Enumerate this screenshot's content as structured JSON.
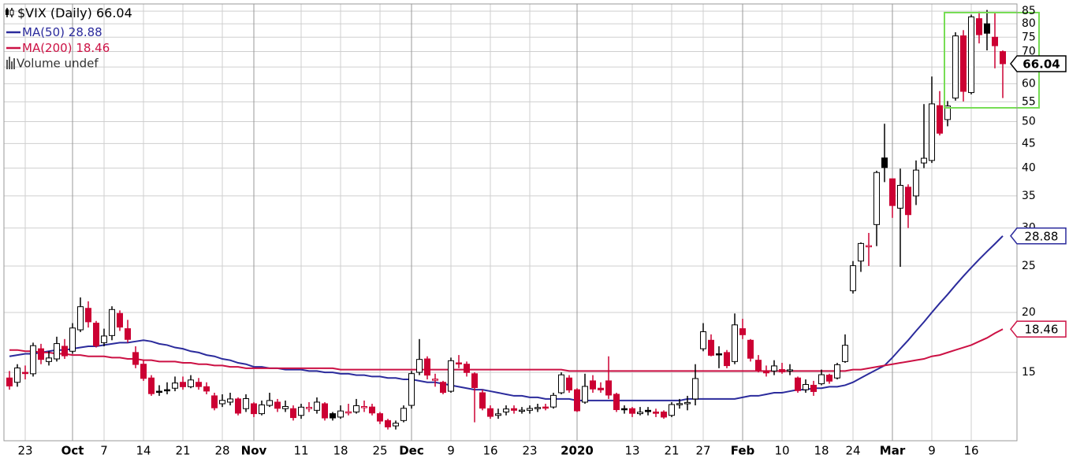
{
  "chart_data": {
    "type": "candlestick",
    "title": "$VIX (Daily)",
    "volume_label": "Volume undef",
    "log": true,
    "grid": true,
    "up_color": "#000000",
    "down_color": "#cc0033",
    "ylim": [
      10.8,
      88
    ],
    "yticks": [
      15,
      20,
      25,
      30,
      35,
      40,
      45,
      50,
      55,
      60,
      65,
      70,
      75,
      80,
      85
    ],
    "categories": [
      null,
      null,
      "23",
      null,
      null,
      null,
      null,
      null,
      "Oct",
      null,
      null,
      null,
      "7",
      null,
      null,
      null,
      null,
      "14",
      null,
      null,
      null,
      null,
      "21",
      null,
      null,
      null,
      null,
      "28",
      null,
      null,
      null,
      "Nov",
      null,
      null,
      null,
      null,
      null,
      "11",
      null,
      null,
      null,
      null,
      "18",
      null,
      null,
      null,
      null,
      "25",
      null,
      null,
      null,
      "Dec",
      null,
      null,
      null,
      null,
      "9",
      null,
      null,
      null,
      null,
      "16",
      null,
      null,
      null,
      null,
      "23",
      null,
      null,
      null,
      null,
      null,
      "2020",
      null,
      null,
      null,
      null,
      null,
      null,
      "13",
      null,
      null,
      null,
      null,
      "21",
      null,
      null,
      null,
      "27",
      null,
      null,
      null,
      null,
      "Feb",
      null,
      null,
      null,
      null,
      "10",
      null,
      null,
      null,
      null,
      "18",
      null,
      null,
      null,
      "24",
      null,
      null,
      null,
      null,
      "Mar",
      null,
      null,
      null,
      null,
      "9",
      null,
      null,
      null,
      null,
      "16",
      null,
      null,
      null,
      null
    ],
    "open": [
      14.6,
      14.3,
      15.0,
      14.9,
      16.8,
      15.8,
      16.0,
      17.0,
      16.6,
      18.4,
      20.4,
      19.0,
      17.3,
      17.9,
      19.9,
      18.5,
      16.5,
      15.6,
      14.6,
      13.7,
      13.8,
      13.9,
      14.3,
      14.0,
      14.3,
      14.0,
      13.4,
      12.9,
      13.0,
      13.2,
      12.6,
      12.9,
      12.3,
      12.8,
      13.0,
      12.6,
      12.6,
      12.2,
      12.6,
      12.5,
      12.9,
      12.3,
      12.1,
      12.4,
      12.4,
      12.7,
      12.7,
      12.3,
      11.9,
      11.6,
      11.9,
      12.8,
      15.0,
      16.0,
      14.5,
      14.3,
      13.7,
      15.7,
      15.6,
      14.9,
      13.6,
      12.6,
      12.2,
      12.4,
      12.6,
      12.5,
      12.5,
      12.6,
      12.7,
      12.7,
      13.6,
      14.6,
      13.8,
      13.0,
      14.4,
      13.9,
      14.4,
      13.5,
      12.6,
      12.6,
      12.3,
      12.5,
      12.4,
      12.4,
      12.2,
      12.9,
      12.9,
      13.2,
      16.8,
      17.5,
      16.4,
      16.5,
      15.8,
      18.5,
      17.5,
      15.9,
      15.1,
      15.1,
      15.2,
      15.1,
      14.6,
      13.8,
      14.1,
      14.2,
      14.8,
      14.6,
      15.8,
      22.2,
      25.6,
      27.5,
      30.5,
      42.0,
      38.0,
      33.0,
      36.5,
      35.0,
      41.0,
      41.5,
      54.0,
      50.5,
      56.0,
      75.5,
      57.5,
      82.0,
      80.0,
      75.0,
      70.0
    ],
    "high": [
      15.1,
      15.6,
      15.5,
      17.3,
      17.2,
      16.6,
      17.8,
      17.6,
      19.0,
      21.5,
      21.1,
      19.2,
      18.5,
      20.6,
      20.2,
      19.3,
      17.0,
      15.9,
      14.8,
      14.1,
      14.3,
      14.7,
      14.7,
      14.8,
      14.6,
      14.3,
      13.6,
      13.5,
      13.6,
      13.3,
      13.5,
      13.0,
      13.1,
      13.6,
      13.2,
      13.1,
      12.8,
      12.9,
      13.0,
      13.3,
      13.0,
      12.4,
      12.8,
      12.9,
      13.2,
      13.1,
      12.9,
      12.4,
      12.0,
      11.9,
      12.8,
      15.1,
      17.6,
      16.2,
      14.9,
      14.4,
      16.1,
      16.3,
      15.8,
      15.0,
      13.8,
      12.8,
      12.6,
      12.8,
      12.8,
      12.7,
      12.8,
      12.9,
      12.9,
      13.6,
      15.0,
      14.8,
      13.9,
      14.9,
      14.8,
      14.3,
      16.2,
      13.6,
      12.8,
      12.7,
      12.7,
      12.7,
      12.6,
      12.5,
      13.0,
      13.2,
      13.4,
      15.6,
      19.0,
      18.0,
      17.0,
      16.7,
      19.9,
      19.4,
      17.6,
      16.3,
      15.5,
      15.9,
      15.7,
      15.6,
      14.7,
      14.5,
      14.4,
      15.2,
      14.9,
      15.7,
      18.0,
      25.6,
      28.0,
      29.3,
      39.5,
      49.5,
      38.0,
      39.9,
      37.0,
      41.5,
      54.4,
      62.1,
      57.9,
      55.2,
      76.8,
      77.6,
      83.6,
      84.8,
      85.5,
      84.3,
      70.4
    ],
    "low": [
      13.8,
      14.0,
      14.5,
      14.7,
      15.6,
      15.5,
      15.8,
      16.0,
      16.4,
      18.2,
      18.6,
      16.9,
      17.0,
      17.5,
      18.3,
      17.3,
      15.3,
      14.4,
      13.4,
      13.4,
      13.5,
      13.7,
      13.8,
      13.9,
      13.8,
      13.5,
      12.5,
      12.7,
      12.8,
      12.2,
      12.4,
      12.1,
      12.2,
      12.7,
      12.4,
      12.4,
      11.9,
      12.0,
      12.4,
      12.3,
      11.9,
      11.9,
      12.0,
      12.2,
      12.3,
      12.4,
      12.2,
      11.7,
      11.4,
      11.4,
      11.8,
      12.6,
      14.8,
      14.5,
      14.0,
      13.5,
      13.6,
      15.3,
      14.7,
      11.8,
      12.5,
      12.0,
      12.0,
      12.2,
      12.3,
      12.3,
      12.3,
      12.4,
      12.5,
      12.6,
      13.5,
      13.6,
      12.4,
      12.9,
      13.6,
      13.6,
      13.2,
      12.4,
      12.3,
      12.1,
      12.2,
      12.2,
      12.1,
      12.0,
      12.1,
      12.6,
      12.5,
      12.8,
      16.6,
      16.2,
      15.3,
      15.3,
      15.6,
      17.6,
      15.8,
      15.0,
      14.7,
      14.8,
      14.9,
      14.8,
      13.6,
      13.6,
      13.4,
      14.1,
      14.2,
      14.5,
      15.7,
      21.9,
      24.3,
      25.0,
      27.5,
      37.4,
      31.5,
      24.9,
      30.0,
      33.5,
      40.0,
      41.0,
      46.8,
      48.9,
      55.3,
      55.1,
      57.0,
      72.8,
      70.4,
      64.6,
      56.0
    ],
    "close": [
      14.05,
      15.32,
      14.91,
      17.05,
      15.96,
      16.07,
      17.22,
      16.24,
      18.56,
      20.56,
      19.12,
      17.04,
      17.86,
      20.28,
      18.64,
      17.57,
      15.58,
      14.57,
      13.54,
      13.68,
      13.79,
      14.25,
      14.0,
      14.46,
      14.01,
      13.71,
      12.65,
      13.11,
      13.2,
      12.33,
      13.22,
      12.3,
      12.83,
      13.1,
      12.62,
      12.73,
      12.07,
      12.69,
      12.68,
      13.0,
      12.05,
      12.05,
      12.46,
      12.41,
      12.78,
      12.73,
      12.34,
      11.87,
      11.54,
      11.75,
      12.62,
      14.91,
      15.96,
      14.8,
      14.52,
      13.62,
      15.86,
      15.68,
      14.99,
      13.94,
      12.63,
      12.14,
      12.29,
      12.58,
      12.5,
      12.51,
      12.61,
      12.67,
      12.65,
      13.43,
      14.82,
      13.78,
      12.47,
      14.02,
      13.85,
      13.79,
      13.45,
      12.54,
      12.56,
      12.32,
      12.39,
      12.42,
      12.32,
      12.1,
      12.85,
      12.91,
      12.98,
      14.56,
      18.23,
      16.28,
      16.39,
      15.49,
      18.84,
      17.97,
      16.05,
      15.15,
      14.96,
      15.47,
      15.04,
      15.18,
      13.74,
      14.15,
      13.68,
      14.83,
      14.38,
      15.56,
      17.08,
      25.03,
      27.85,
      27.56,
      39.16,
      40.11,
      33.42,
      36.82,
      31.99,
      39.62,
      41.94,
      54.46,
      47.3,
      53.9,
      75.47,
      57.83,
      82.69,
      75.91,
      76.45,
      72.0,
      66.04
    ],
    "series": [
      {
        "name": "MA(50)",
        "color": "#2b2b9c",
        "values": [
          16.2,
          16.3,
          16.4,
          16.4,
          16.5,
          16.6,
          16.7,
          16.7,
          16.8,
          16.9,
          17.0,
          17.0,
          17.1,
          17.2,
          17.3,
          17.3,
          17.4,
          17.5,
          17.4,
          17.2,
          17.1,
          16.9,
          16.8,
          16.6,
          16.5,
          16.3,
          16.2,
          16.0,
          15.9,
          15.7,
          15.6,
          15.4,
          15.4,
          15.3,
          15.3,
          15.2,
          15.2,
          15.2,
          15.1,
          15.1,
          15.0,
          15.0,
          14.9,
          14.9,
          14.8,
          14.8,
          14.7,
          14.7,
          14.6,
          14.6,
          14.5,
          14.5,
          14.4,
          14.3,
          14.3,
          14.2,
          14.1,
          14.0,
          13.9,
          13.8,
          13.8,
          13.7,
          13.6,
          13.5,
          13.4,
          13.4,
          13.3,
          13.3,
          13.2,
          13.2,
          13.2,
          13.2,
          13.1,
          13.1,
          13.1,
          13.1,
          13.1,
          13.1,
          13.1,
          13.1,
          13.1,
          13.1,
          13.1,
          13.1,
          13.1,
          13.1,
          13.2,
          13.2,
          13.2,
          13.2,
          13.2,
          13.2,
          13.2,
          13.3,
          13.4,
          13.4,
          13.5,
          13.6,
          13.6,
          13.7,
          13.8,
          13.8,
          13.9,
          13.9,
          14.0,
          14.0,
          14.1,
          14.3,
          14.6,
          14.9,
          15.2,
          15.5,
          16.1,
          16.8,
          17.5,
          18.3,
          19.1,
          20.0,
          20.9,
          21.8,
          22.8,
          23.8,
          24.8,
          25.8,
          26.8,
          27.8,
          28.88
        ]
      },
      {
        "name": "MA(200)",
        "color": "#cc1144",
        "values": [
          16.7,
          16.7,
          16.6,
          16.6,
          16.5,
          16.5,
          16.4,
          16.4,
          16.3,
          16.3,
          16.2,
          16.2,
          16.2,
          16.1,
          16.1,
          16.0,
          16.0,
          15.9,
          15.9,
          15.8,
          15.8,
          15.8,
          15.7,
          15.7,
          15.6,
          15.6,
          15.5,
          15.5,
          15.4,
          15.4,
          15.3,
          15.3,
          15.3,
          15.3,
          15.3,
          15.3,
          15.3,
          15.3,
          15.3,
          15.3,
          15.3,
          15.3,
          15.2,
          15.2,
          15.2,
          15.2,
          15.2,
          15.2,
          15.2,
          15.2,
          15.2,
          15.2,
          15.2,
          15.2,
          15.2,
          15.2,
          15.2,
          15.2,
          15.2,
          15.2,
          15.2,
          15.2,
          15.2,
          15.2,
          15.2,
          15.2,
          15.2,
          15.2,
          15.2,
          15.2,
          15.2,
          15.1,
          15.1,
          15.1,
          15.1,
          15.1,
          15.1,
          15.1,
          15.1,
          15.1,
          15.1,
          15.1,
          15.1,
          15.1,
          15.1,
          15.1,
          15.1,
          15.1,
          15.1,
          15.1,
          15.1,
          15.1,
          15.1,
          15.1,
          15.1,
          15.1,
          15.1,
          15.1,
          15.1,
          15.1,
          15.1,
          15.1,
          15.1,
          15.1,
          15.1,
          15.1,
          15.1,
          15.2,
          15.2,
          15.3,
          15.4,
          15.5,
          15.6,
          15.7,
          15.8,
          15.9,
          16.0,
          16.2,
          16.3,
          16.5,
          16.7,
          16.9,
          17.1,
          17.4,
          17.7,
          18.1,
          18.46
        ]
      }
    ]
  }
}
